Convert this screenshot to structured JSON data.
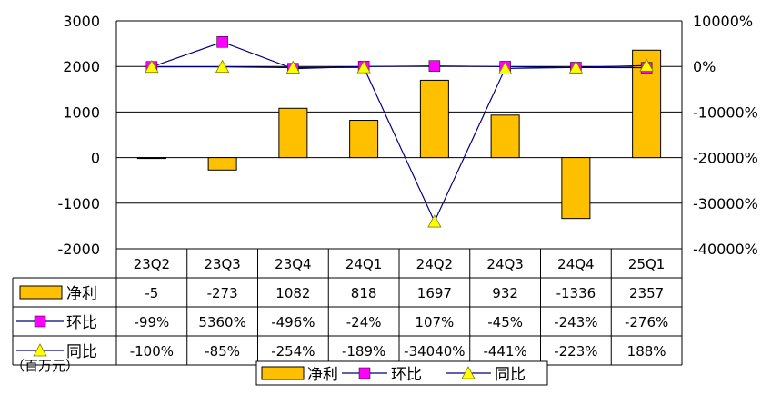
{
  "chart_data": {
    "type": "bar",
    "categories": [
      "23Q2",
      "23Q3",
      "23Q4",
      "24Q1",
      "24Q2",
      "24Q3",
      "24Q4",
      "25Q1"
    ],
    "left_axis": {
      "min": -2000,
      "max": 3000,
      "step": 1000,
      "ticks": [
        "3000",
        "2000",
        "1000",
        "0",
        "-1000",
        "-2000"
      ]
    },
    "right_axis": {
      "min": -40000,
      "max": 10000,
      "step": 10000,
      "ticks": [
        "10000%",
        "0%",
        "-10000%",
        "-20000%",
        "-30000%",
        "-40000%"
      ]
    },
    "series": [
      {
        "name": "净利",
        "type": "bar",
        "axis": "left",
        "color": "#FFC000",
        "values": [
          -5,
          -273,
          1082,
          818,
          1697,
          932,
          -1336,
          2357
        ],
        "labels": [
          "-5",
          "-273",
          "1082",
          "818",
          "1697",
          "932",
          "-1336",
          "2357"
        ]
      },
      {
        "name": "环比",
        "type": "line",
        "axis": "right",
        "color": "#FF00FF",
        "marker": "square",
        "values": [
          -99,
          5360,
          -496,
          -24,
          107,
          -45,
          -243,
          -276
        ],
        "labels": [
          "-99%",
          "5360%",
          "-496%",
          "-24%",
          "107%",
          "-45%",
          "-243%",
          "-276%"
        ]
      },
      {
        "name": "同比",
        "type": "line",
        "axis": "right",
        "color": "#FFFF00",
        "marker": "triangle",
        "values": [
          -100,
          -85,
          -254,
          -189,
          -34040,
          -441,
          -223,
          188
        ],
        "labels": [
          "-100%",
          "-85%",
          "-254%",
          "-189%",
          "-34040%",
          "-441%",
          "-223%",
          "188%"
        ]
      }
    ],
    "line_color": "#000080",
    "grid": true,
    "legend_position": "bottom"
  },
  "unit_label": "（百万元）"
}
